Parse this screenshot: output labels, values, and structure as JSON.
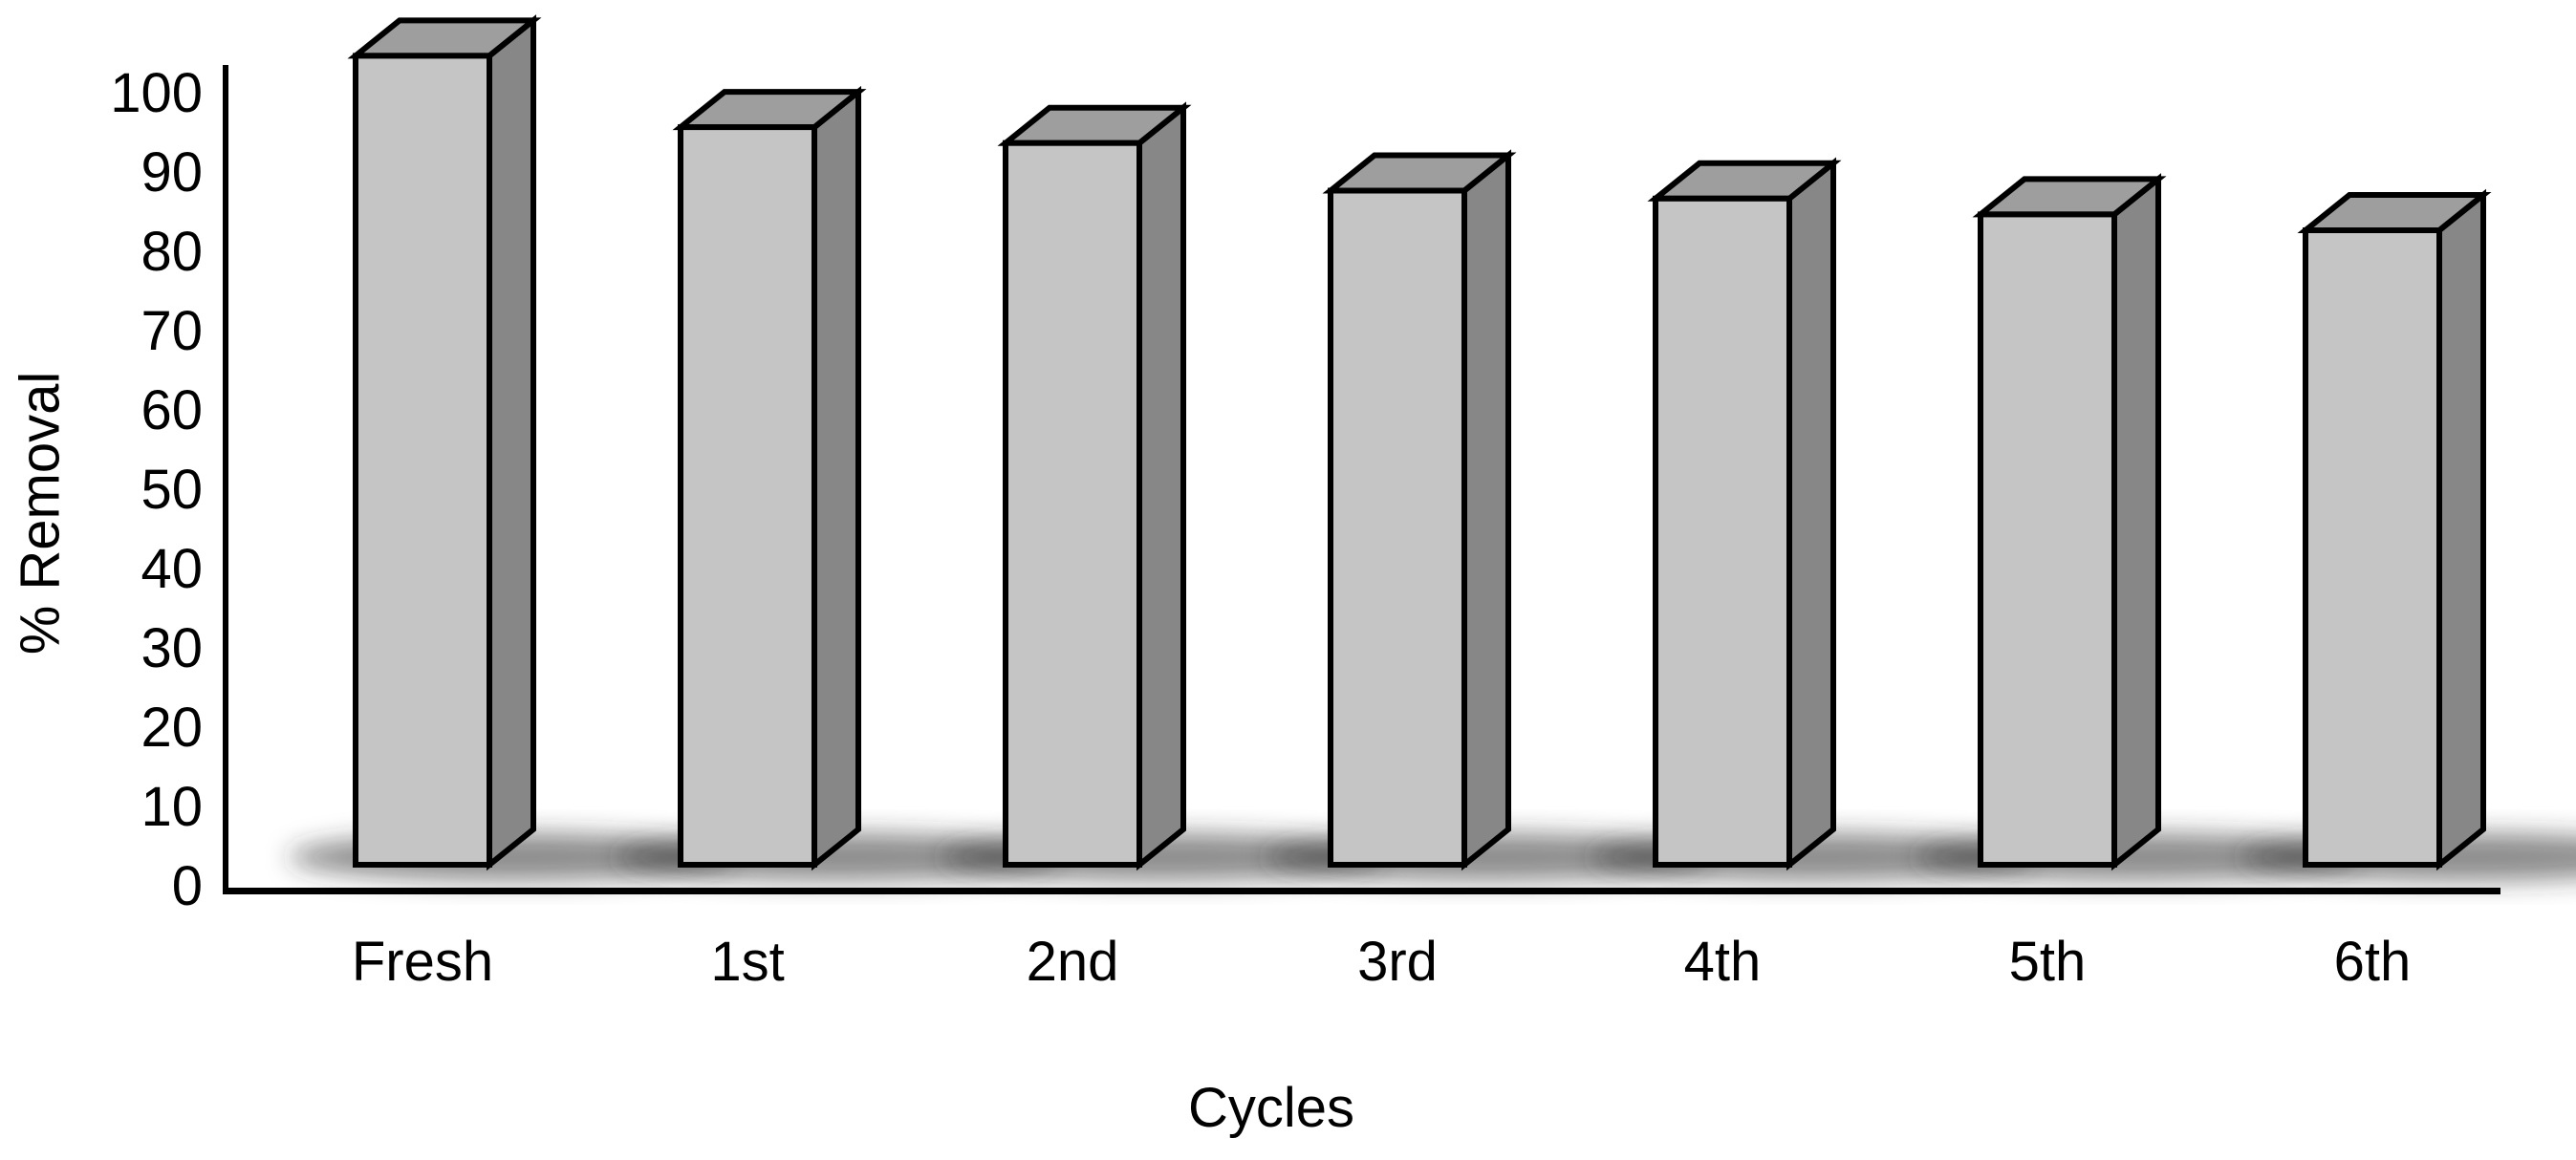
{
  "chart_data": {
    "type": "bar",
    "title": "",
    "categories": [
      "Fresh",
      "1st",
      "2nd",
      "3rd",
      "4th",
      "5th",
      "6th"
    ],
    "values": [
      102,
      93,
      91,
      85,
      84,
      82,
      80
    ],
    "xlabel": "Cycles",
    "ylabel": "% Removal",
    "ylim": [
      0,
      100
    ],
    "yticks": [
      0,
      10,
      20,
      30,
      40,
      50,
      60,
      70,
      80,
      90,
      100
    ],
    "grid": false,
    "legend": false,
    "bar_style": "3d-box-with-floor-shadow"
  },
  "colors": {
    "background": "#ffffff",
    "bar_front": "#c5c5c5",
    "bar_top": "#9e9e9e",
    "bar_side": "#878787",
    "bar_outline": "#000000",
    "axis": "#000000",
    "text": "#000000",
    "shadow": "#2e2e2e"
  }
}
